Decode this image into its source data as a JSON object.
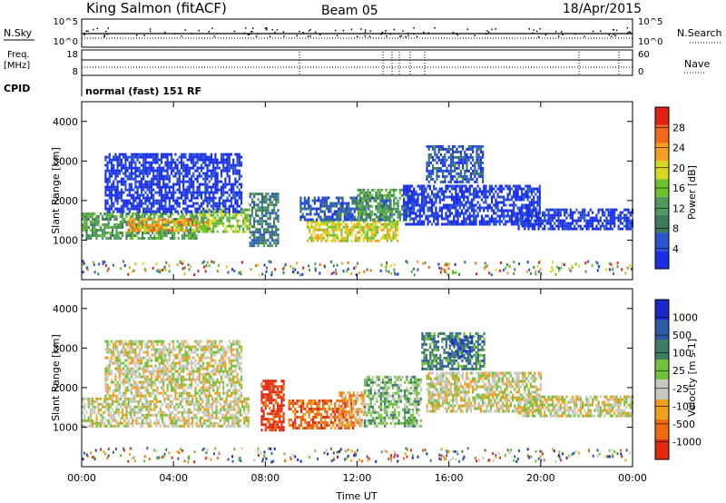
{
  "header": {
    "station": "King Salmon (fitACF)",
    "beam": "Beam 05",
    "date": "18/Apr/2015"
  },
  "status_panels": {
    "nsky_label": "N.Sky",
    "nsky_ticks": [
      "10^5",
      "10^0"
    ],
    "nsearch_label": "N.Search",
    "nsearch_ticks": [
      "10^5",
      "10^0"
    ],
    "freq_label_1": "Freq.",
    "freq_label_2": "[MHz]",
    "freq_ticks": [
      "18",
      "8"
    ],
    "nave_label": "Nave",
    "nave_ticks": [
      "60",
      "0"
    ],
    "cpid_label": "CPID",
    "cpid_text": "normal (fast) 151 RF"
  },
  "colors": {
    "power": [
      "#1a2ee8",
      "#2a55d0",
      "#3d7a5a",
      "#4e9a5e",
      "#6cc22a",
      "#d8d820",
      "#f5a020",
      "#f26818",
      "#e02010"
    ],
    "velocity": [
      "#1a28c8",
      "#2f5aa8",
      "#3d7e63",
      "#6fc23a",
      "#c8c8c0",
      "#f0a020",
      "#f06a10",
      "#e02a10"
    ]
  },
  "chart_data": [
    {
      "type": "heatmap",
      "title": "Power",
      "x_axis": "Time UT",
      "ylabel": "Slant Range [km]",
      "ylim": [
        0,
        4500
      ],
      "yticks": [
        "1000",
        "2000",
        "3000",
        "4000"
      ],
      "xlim": [
        "00:00",
        "24:00"
      ],
      "xticks": [
        "00:00",
        "04:00",
        "08:00",
        "12:00",
        "16:00",
        "20:00",
        "00:00"
      ],
      "colorbar_label": "Power [dB]",
      "colorbar_ticks": [
        "4",
        "8",
        "12",
        "16",
        "20",
        "24",
        "28"
      ],
      "regions": [
        {
          "t0": 0.0,
          "t1": 5.0,
          "r0": 1050,
          "r1": 1700,
          "level": 3
        },
        {
          "t0": 2.0,
          "t1": 5.5,
          "r0": 1250,
          "r1": 1550,
          "level": 6
        },
        {
          "t0": 5.0,
          "t1": 7.3,
          "r0": 1200,
          "r1": 1800,
          "level": 4
        },
        {
          "t0": 1.0,
          "t1": 7.0,
          "r0": 1700,
          "r1": 3200,
          "level": 0
        },
        {
          "t0": 7.3,
          "t1": 8.6,
          "r0": 850,
          "r1": 2200,
          "level": 2
        },
        {
          "t0": 9.8,
          "t1": 13.8,
          "r0": 1000,
          "r1": 1500,
          "level": 5
        },
        {
          "t0": 9.5,
          "t1": 13.5,
          "r0": 1500,
          "r1": 2100,
          "level": 1
        },
        {
          "t0": 12.0,
          "t1": 14.3,
          "r0": 1500,
          "r1": 2300,
          "level": 3
        },
        {
          "t0": 15.0,
          "t1": 17.5,
          "r0": 2500,
          "r1": 3400,
          "level": 1
        },
        {
          "t0": 14.0,
          "t1": 20.0,
          "r0": 1400,
          "r1": 2400,
          "level": 0
        },
        {
          "t0": 19.0,
          "t1": 24.0,
          "r0": 1300,
          "r1": 1800,
          "level": 0
        }
      ]
    },
    {
      "type": "heatmap",
      "title": "Velocity",
      "x_axis": "Time UT",
      "ylabel": "Slant Range [km]",
      "ylim": [
        0,
        4500
      ],
      "yticks": [
        "1000",
        "2000",
        "3000",
        "4000"
      ],
      "xlim": [
        "00:00",
        "24:00"
      ],
      "xticks": [
        "00:00",
        "04:00",
        "08:00",
        "12:00",
        "16:00",
        "20:00",
        "00:00"
      ],
      "xlabel": "Time UT",
      "colorbar_label": "Velocity [m s-1]",
      "colorbar_ticks": [
        "1000",
        "500",
        "100",
        "25",
        "-25",
        "-100",
        "-500",
        "-1000"
      ],
      "regions": [
        {
          "t0": 0.0,
          "t1": 7.3,
          "r0": 1050,
          "r1": 1750,
          "level": 4
        },
        {
          "t0": 1.0,
          "t1": 7.0,
          "r0": 1800,
          "r1": 3200,
          "level": 4
        },
        {
          "t0": 7.8,
          "t1": 8.8,
          "r0": 900,
          "r1": 2200,
          "level": 7
        },
        {
          "t0": 9.0,
          "t1": 11.8,
          "r0": 1000,
          "r1": 1700,
          "level": 6
        },
        {
          "t0": 11.2,
          "t1": 12.3,
          "r0": 1050,
          "r1": 1900,
          "level": 5
        },
        {
          "t0": 12.3,
          "t1": 14.8,
          "r0": 1000,
          "r1": 2300,
          "level": 3
        },
        {
          "t0": 14.8,
          "t1": 17.5,
          "r0": 2500,
          "r1": 3400,
          "level": 2
        },
        {
          "t0": 16.0,
          "t1": 17.0,
          "r0": 2800,
          "r1": 3300,
          "level": 1
        },
        {
          "t0": 15.0,
          "t1": 20.0,
          "r0": 1400,
          "r1": 2400,
          "level": 4
        },
        {
          "t0": 19.0,
          "t1": 24.0,
          "r0": 1300,
          "r1": 1800,
          "level": 4
        }
      ]
    }
  ]
}
